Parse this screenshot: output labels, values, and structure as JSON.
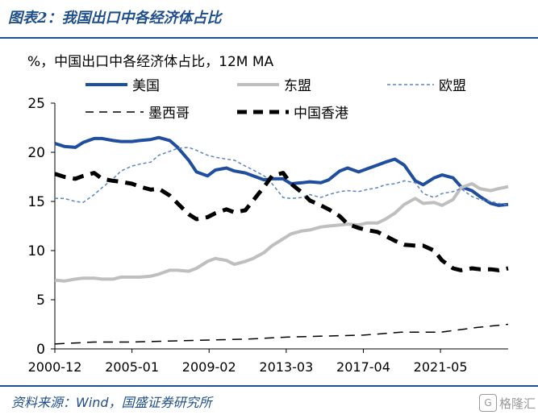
{
  "figure": {
    "title": "图表2：我国出口中各经济体占比",
    "source": "资料来源：Wind，国盛证券研究所",
    "watermark": "格隆汇"
  },
  "chart_data": {
    "type": "line",
    "subtitle": "%，中国出口中各经济体占比，12M MA",
    "xlabel": "",
    "ylabel": "",
    "ylim": [
      0,
      25
    ],
    "yticks": [
      0,
      5,
      10,
      15,
      20,
      25
    ],
    "xlim": [
      "2000-12",
      "2024-12"
    ],
    "xticks": [
      "2000-12",
      "2005-01",
      "2009-02",
      "2013-03",
      "2017-04",
      "2021-05"
    ],
    "grid": false,
    "legend_position": "top",
    "colors": {
      "us": "#1f4e9e",
      "asean": "#bfbfbf",
      "eu": "#5b84c4",
      "mexico": "#000000",
      "hk": "#000000"
    },
    "series": [
      {
        "name": "美国",
        "key": "us",
        "style": "solid-thick",
        "x": [
          "2000-12",
          "2001-06",
          "2002-01",
          "2002-06",
          "2003-01",
          "2003-06",
          "2004-01",
          "2004-06",
          "2005-01",
          "2005-06",
          "2006-01",
          "2006-06",
          "2007-01",
          "2007-06",
          "2008-01",
          "2008-06",
          "2009-01",
          "2009-06",
          "2010-01",
          "2010-06",
          "2011-01",
          "2011-06",
          "2012-01",
          "2012-06",
          "2013-01",
          "2013-06",
          "2014-01",
          "2014-06",
          "2015-01",
          "2015-06",
          "2016-01",
          "2016-06",
          "2017-01",
          "2017-06",
          "2018-01",
          "2018-06",
          "2018-12",
          "2019-06",
          "2020-01",
          "2020-06",
          "2021-01",
          "2021-06",
          "2022-01",
          "2022-06",
          "2023-01",
          "2023-06",
          "2024-01",
          "2024-06",
          "2024-12"
        ],
        "y": [
          20.9,
          20.6,
          20.5,
          21.0,
          21.4,
          21.4,
          21.2,
          21.1,
          21.1,
          21.2,
          21.3,
          21.5,
          21.2,
          20.5,
          19.2,
          18.0,
          17.6,
          18.2,
          18.4,
          18.1,
          17.9,
          17.6,
          17.2,
          17.3,
          17.3,
          16.8,
          16.9,
          17.0,
          16.9,
          17.2,
          18.1,
          18.4,
          18.0,
          18.3,
          18.7,
          19.0,
          19.3,
          18.7,
          17.1,
          16.7,
          17.4,
          17.7,
          17.4,
          16.5,
          16.1,
          15.5,
          14.8,
          14.6,
          14.7
        ]
      },
      {
        "name": "东盟",
        "key": "asean",
        "style": "solid-thick",
        "x": [
          "2000-12",
          "2001-06",
          "2002-01",
          "2002-06",
          "2003-01",
          "2003-06",
          "2004-01",
          "2004-06",
          "2005-01",
          "2005-06",
          "2006-01",
          "2006-06",
          "2007-01",
          "2007-06",
          "2008-01",
          "2008-06",
          "2009-01",
          "2009-06",
          "2010-01",
          "2010-06",
          "2011-01",
          "2011-06",
          "2012-01",
          "2012-06",
          "2013-01",
          "2013-06",
          "2014-01",
          "2014-06",
          "2015-01",
          "2015-06",
          "2016-01",
          "2016-06",
          "2017-01",
          "2017-06",
          "2018-01",
          "2018-06",
          "2018-12",
          "2019-06",
          "2020-01",
          "2020-06",
          "2021-01",
          "2021-06",
          "2022-01",
          "2022-06",
          "2023-01",
          "2023-06",
          "2024-01",
          "2024-06",
          "2024-12"
        ],
        "y": [
          7.0,
          6.9,
          7.1,
          7.2,
          7.2,
          7.1,
          7.1,
          7.3,
          7.3,
          7.3,
          7.4,
          7.6,
          8.0,
          8.0,
          7.9,
          8.2,
          8.9,
          9.2,
          9.0,
          8.6,
          8.9,
          9.2,
          9.8,
          10.5,
          11.2,
          11.7,
          12.0,
          12.1,
          12.4,
          12.5,
          12.6,
          12.7,
          12.6,
          12.8,
          12.8,
          13.2,
          13.8,
          14.7,
          15.3,
          14.8,
          14.9,
          14.6,
          15.2,
          16.4,
          16.8,
          16.3,
          16.1,
          16.3,
          16.5
        ]
      },
      {
        "name": "欧盟",
        "key": "eu",
        "style": "dashed-thin",
        "x": [
          "2000-12",
          "2001-06",
          "2002-01",
          "2002-06",
          "2003-01",
          "2003-06",
          "2004-01",
          "2004-06",
          "2005-01",
          "2005-06",
          "2006-01",
          "2006-06",
          "2007-01",
          "2007-06",
          "2008-01",
          "2008-06",
          "2009-01",
          "2009-06",
          "2010-01",
          "2010-06",
          "2011-01",
          "2011-06",
          "2012-01",
          "2012-06",
          "2013-01",
          "2013-06",
          "2014-01",
          "2014-06",
          "2015-01",
          "2015-06",
          "2016-01",
          "2016-06",
          "2017-01",
          "2017-06",
          "2018-01",
          "2018-06",
          "2018-12",
          "2019-06",
          "2020-01",
          "2020-06",
          "2021-01",
          "2021-06",
          "2022-01",
          "2022-06",
          "2023-01",
          "2023-06",
          "2024-01",
          "2024-06",
          "2024-12"
        ],
        "y": [
          15.3,
          15.3,
          15.0,
          14.9,
          15.7,
          16.4,
          17.3,
          18.1,
          18.6,
          18.8,
          19.0,
          19.7,
          20.1,
          20.4,
          20.5,
          20.2,
          19.7,
          19.5,
          19.3,
          19.2,
          18.6,
          18.2,
          17.6,
          16.8,
          15.4,
          15.3,
          15.4,
          15.7,
          15.4,
          15.7,
          16.0,
          16.1,
          16.0,
          16.2,
          16.4,
          16.7,
          16.8,
          17.1,
          16.9,
          15.8,
          15.4,
          15.8,
          16.0,
          16.3,
          15.5,
          15.2,
          15.0,
          14.8,
          14.6
        ]
      },
      {
        "name": "墨西哥",
        "key": "mexico",
        "style": "dashed-thin",
        "x": [
          "2000-12",
          "2003-01",
          "2005-01",
          "2007-01",
          "2009-02",
          "2011-03",
          "2013-03",
          "2015-03",
          "2017-04",
          "2019-04",
          "2021-05",
          "2023-05",
          "2024-12"
        ],
        "y": [
          0.5,
          0.7,
          0.7,
          0.8,
          0.9,
          1.0,
          1.2,
          1.3,
          1.4,
          1.7,
          1.7,
          2.2,
          2.5
        ]
      },
      {
        "name": "中国香港",
        "key": "hk",
        "style": "dashed-thick",
        "x": [
          "2000-12",
          "2001-06",
          "2002-01",
          "2002-06",
          "2003-01",
          "2003-06",
          "2004-01",
          "2004-06",
          "2005-01",
          "2005-06",
          "2006-01",
          "2006-06",
          "2007-01",
          "2007-06",
          "2008-01",
          "2008-06",
          "2009-01",
          "2009-06",
          "2010-01",
          "2010-06",
          "2011-01",
          "2011-06",
          "2012-01",
          "2012-06",
          "2013-01",
          "2013-06",
          "2014-01",
          "2014-06",
          "2015-01",
          "2015-06",
          "2016-01",
          "2016-06",
          "2017-01",
          "2017-06",
          "2018-01",
          "2018-06",
          "2018-12",
          "2019-06",
          "2020-01",
          "2020-06",
          "2021-01",
          "2021-06",
          "2022-01",
          "2022-06",
          "2023-01",
          "2023-06",
          "2024-01",
          "2024-06",
          "2024-12"
        ],
        "y": [
          17.8,
          17.5,
          17.3,
          17.6,
          17.9,
          17.3,
          17.1,
          17.0,
          16.8,
          16.5,
          16.2,
          16.3,
          15.6,
          14.8,
          13.7,
          13.2,
          13.4,
          13.8,
          14.2,
          13.9,
          14.1,
          15.1,
          16.5,
          17.6,
          17.9,
          16.8,
          15.9,
          15.1,
          14.6,
          14.2,
          13.5,
          12.7,
          12.3,
          12.1,
          11.9,
          11.5,
          11.0,
          10.6,
          10.5,
          10.5,
          10.0,
          9.0,
          8.2,
          8.0,
          8.2,
          8.1,
          8.1,
          8.0,
          8.2
        ]
      }
    ]
  }
}
